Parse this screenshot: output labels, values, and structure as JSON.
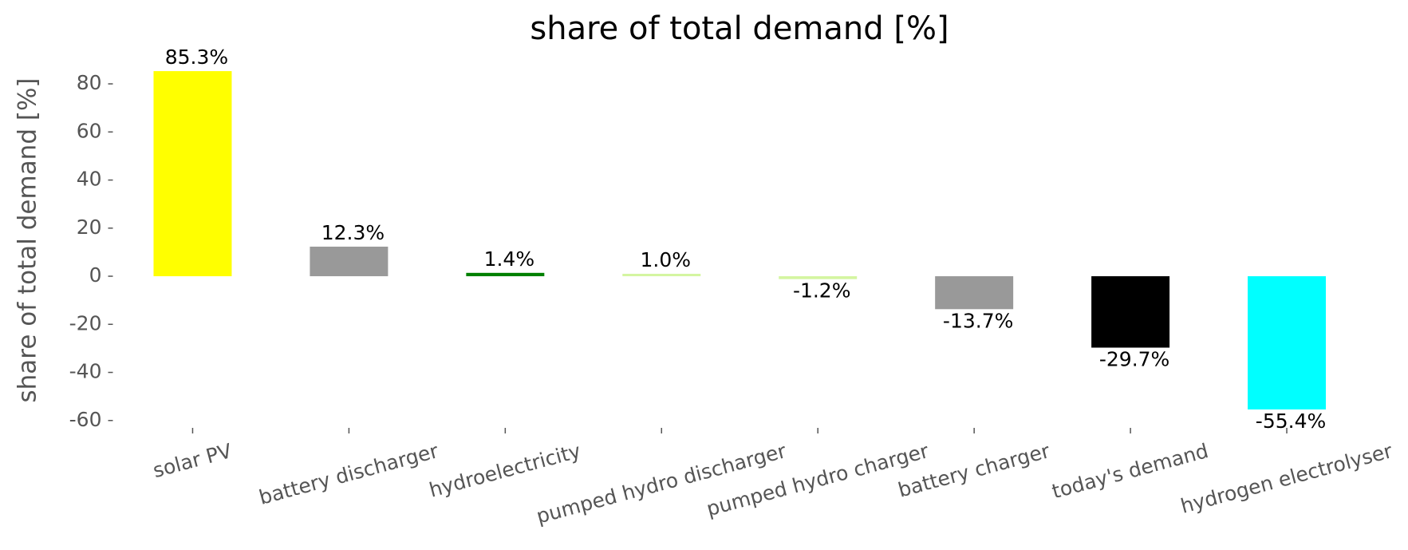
{
  "chart_data": {
    "type": "bar",
    "title": "share of total demand [%]",
    "y_label": "share of total demand [%]",
    "categories": [
      "solar PV",
      "battery discharger",
      "hydroelectricity",
      "pumped hydro discharger",
      "pumped hydro charger",
      "battery charger",
      "today's demand",
      "hydrogen electrolyser"
    ],
    "values": [
      85.3,
      12.3,
      1.4,
      1.0,
      -1.2,
      -13.7,
      -29.7,
      -55.4
    ],
    "value_labels": [
      "85.3%",
      "12.3%",
      "1.4%",
      "1.0%",
      "-1.2%",
      "-13.7%",
      "-29.7%",
      "-55.4%"
    ],
    "colors": [
      "#ffff00",
      "#999999",
      "#008000",
      "#d4f5a0",
      "#d4f5a0",
      "#999999",
      "#000000",
      "#00ffff"
    ],
    "ylim": [
      -62.4,
      92.3
    ],
    "yticks": [
      -60,
      -40,
      -20,
      0,
      20,
      40,
      60,
      80
    ],
    "grid": false
  }
}
